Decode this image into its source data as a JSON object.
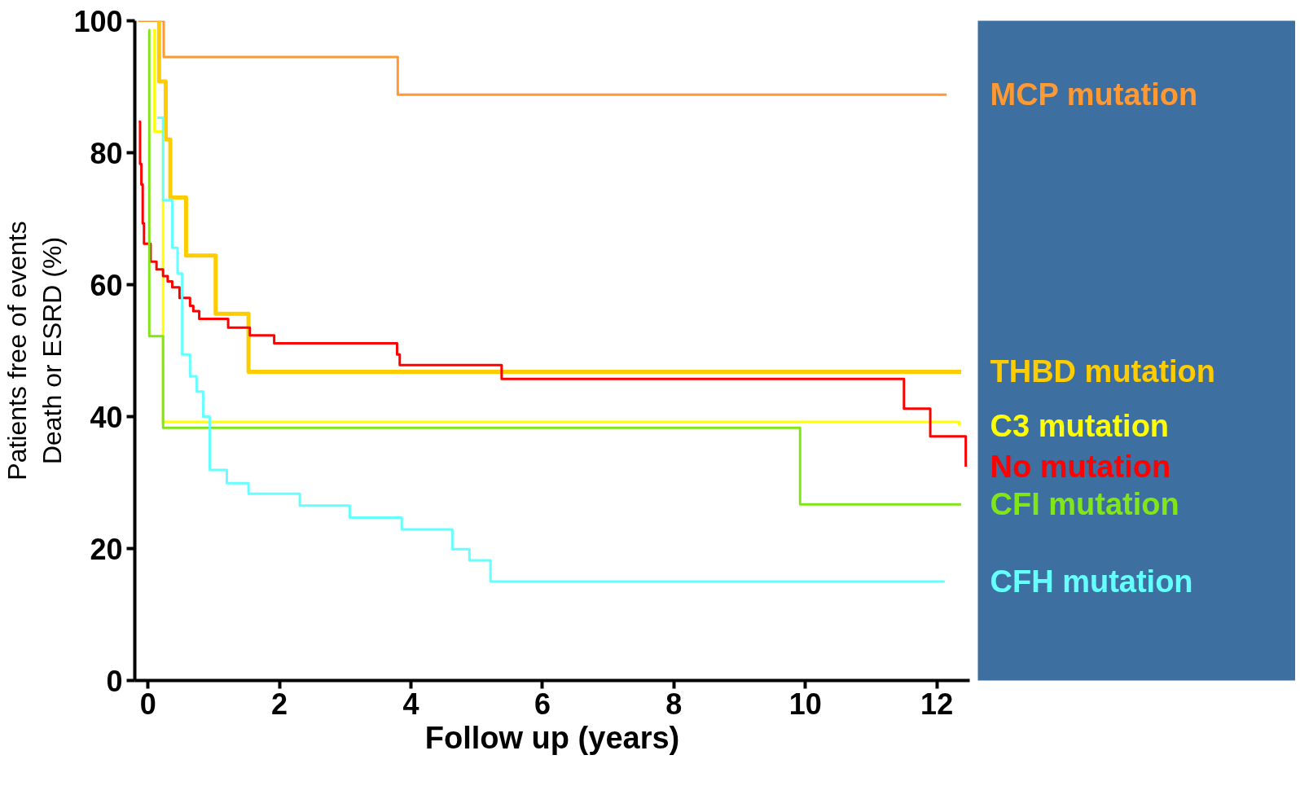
{
  "chart_data": {
    "type": "step",
    "xlabel": "Follow up (years)",
    "ylabel": "Patients free of events\nDeath or ESRD (%)",
    "xlim": [
      -0.2,
      12.5
    ],
    "ylim": [
      0,
      100
    ],
    "xticks": [
      0,
      2,
      4,
      6,
      8,
      10,
      12
    ],
    "yticks": [
      0,
      20,
      40,
      60,
      80,
      100
    ],
    "grid": false,
    "legend": false,
    "line_style": "solid",
    "marker": "none",
    "series": [
      {
        "name": "MCP mutation",
        "color": "#ff9933",
        "x": [
          -0.15,
          0.24,
          3.8,
          12.15
        ],
        "values": [
          100,
          94.5,
          88.8,
          88.8
        ]
      },
      {
        "name": "THBD mutation",
        "color": "#ffcc00",
        "x": [
          0.15,
          0.17,
          0.27,
          0.34,
          0.58,
          1.03,
          1.53,
          12.37
        ],
        "values": [
          100,
          90.8,
          82.0,
          73.2,
          64.4,
          55.6,
          46.8,
          46.8
        ]
      },
      {
        "name": "C3  mutation",
        "color": "#ffff00",
        "x": [
          0.08,
          0.1,
          0.23,
          12.34
        ],
        "values": [
          98.6,
          83.2,
          39.2,
          38.6
        ]
      },
      {
        "name": "No mutation",
        "color": "#ff0000",
        "x": [
          -0.14,
          -0.12,
          -0.1,
          -0.08,
          -0.06,
          0.04,
          0.13,
          0.23,
          0.3,
          0.37,
          0.48,
          0.64,
          0.69,
          0.78,
          1.22,
          1.55,
          1.92,
          3.79,
          3.83,
          5.38,
          11.5,
          11.9,
          12.44
        ],
        "values": [
          84.7,
          78.3,
          75.2,
          69.3,
          66.2,
          63.5,
          62.3,
          61.3,
          60.5,
          59.6,
          58.0,
          56.8,
          56.0,
          54.8,
          53.5,
          52.3,
          51.1,
          49.4,
          47.8,
          45.7,
          41.2,
          37.0,
          32.4
        ]
      },
      {
        "name": "CFI mutation",
        "color": "#80e619",
        "x": [
          0.01,
          0.02,
          0.23,
          9.92,
          12.37
        ],
        "values": [
          98.6,
          52.2,
          38.3,
          26.7,
          26.7
        ]
      },
      {
        "name": "CFH mutation",
        "color": "#66ffff",
        "x": [
          0.14,
          0.23,
          0.37,
          0.45,
          0.52,
          0.64,
          0.74,
          0.84,
          0.94,
          1.2,
          1.53,
          2.31,
          3.07,
          3.86,
          4.63,
          4.89,
          5.21,
          12.12
        ],
        "values": [
          85.3,
          72.8,
          65.6,
          61.7,
          49.4,
          46.1,
          43.8,
          40.0,
          31.9,
          29.9,
          28.3,
          26.5,
          24.7,
          22.9,
          19.9,
          18.2,
          15.0,
          15.0
        ]
      }
    ]
  }
}
